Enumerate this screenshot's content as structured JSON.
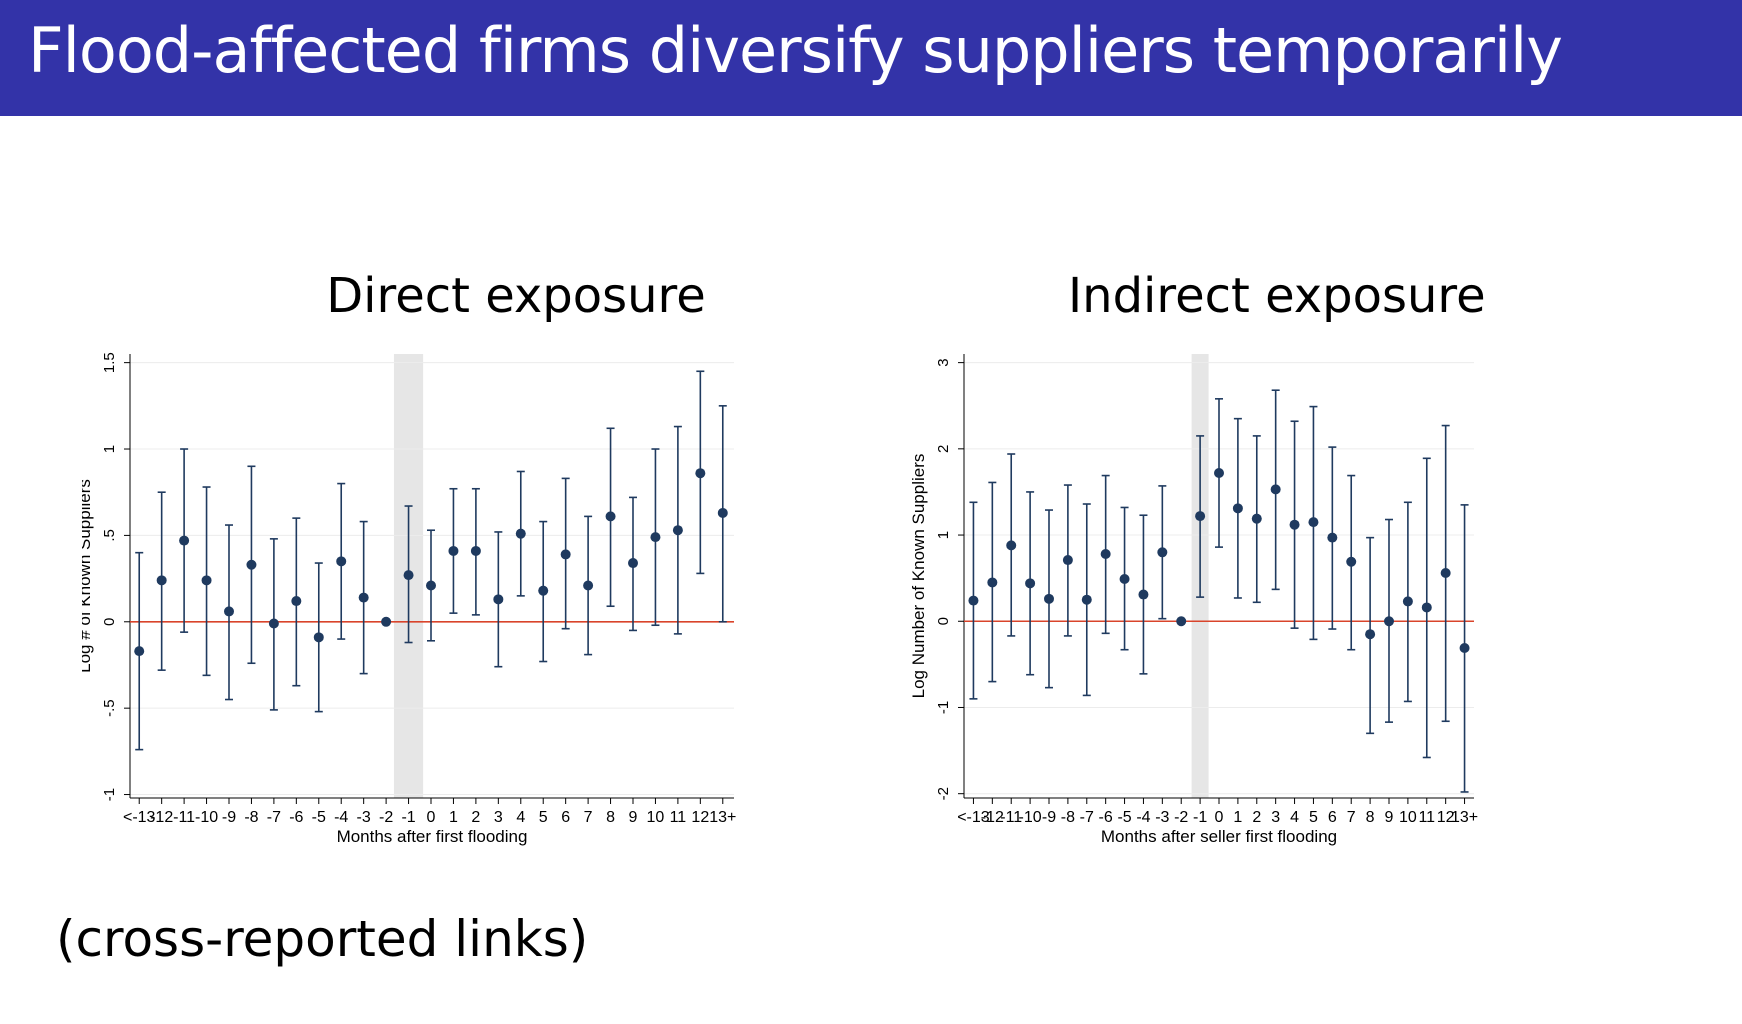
{
  "slide": {
    "title": "Flood-affected firms diversify suppliers temporarily",
    "footnote": "(cross-reported links)"
  },
  "colors": {
    "title_bar": "#3333a8",
    "marker": "#1f3a5f",
    "zero_line": "#d9442b",
    "shade": "#e6e6e6",
    "grid": "#ececec"
  },
  "chart_data": [
    {
      "type": "scatter",
      "subtype": "coefficient-plot-with-confidence-intervals",
      "panel_title": "Direct exposure",
      "xlabel": "Months after first flooding",
      "ylabel": "Log # of Known Suppliers",
      "categories": [
        "<-13",
        "-12",
        "-11",
        "-10",
        "-9",
        "-8",
        "-7",
        "-6",
        "-5",
        "-4",
        "-3",
        "-2",
        "-1",
        "0",
        "1",
        "2",
        "3",
        "4",
        "5",
        "6",
        "7",
        "8",
        "9",
        "10",
        "11",
        "12",
        "13+"
      ],
      "estimates": [
        -0.17,
        0.24,
        0.47,
        0.24,
        0.06,
        0.33,
        -0.01,
        0.12,
        -0.09,
        0.35,
        0.14,
        0.0,
        0.27,
        0.21,
        0.41,
        0.41,
        0.13,
        0.51,
        0.18,
        0.39,
        0.21,
        0.61,
        0.34,
        0.49,
        0.53,
        0.86,
        0.63
      ],
      "ci_lower": [
        -0.74,
        -0.28,
        -0.06,
        -0.31,
        -0.45,
        -0.24,
        -0.51,
        -0.37,
        -0.52,
        -0.1,
        -0.3,
        null,
        -0.12,
        -0.11,
        0.05,
        0.04,
        -0.26,
        0.15,
        -0.23,
        -0.04,
        -0.19,
        0.09,
        -0.05,
        -0.02,
        -0.07,
        0.28,
        0.0
      ],
      "ci_upper": [
        0.4,
        0.75,
        1.0,
        0.78,
        0.56,
        0.9,
        0.48,
        0.6,
        0.34,
        0.8,
        0.58,
        null,
        0.67,
        0.53,
        0.77,
        0.77,
        0.52,
        0.87,
        0.58,
        0.83,
        0.61,
        1.12,
        0.72,
        1.0,
        1.13,
        1.45,
        1.25
      ],
      "ylim": [
        -1.02,
        1.55
      ],
      "yticks": [
        -1,
        -0.5,
        0,
        0.5,
        1,
        1.5
      ],
      "ytick_labels": [
        "-1",
        "-.5",
        "0",
        ".5",
        "1",
        "1.5"
      ],
      "shaded_categories": [
        "-1"
      ],
      "reference_line_y": 0,
      "grid": true
    },
    {
      "type": "scatter",
      "subtype": "coefficient-plot-with-confidence-intervals",
      "panel_title": "Indirect exposure",
      "xlabel": "Months after seller first flooding",
      "ylabel": "Log Number of Known Suppliers",
      "categories": [
        "<-13",
        "-12",
        "-11",
        "-10",
        "-9",
        "-8",
        "-7",
        "-6",
        "-5",
        "-4",
        "-3",
        "-2",
        "-1",
        "0",
        "1",
        "2",
        "3",
        "4",
        "5",
        "6",
        "7",
        "8",
        "9",
        "10",
        "11",
        "12",
        "13+"
      ],
      "estimates": [
        0.24,
        0.45,
        0.88,
        0.44,
        0.26,
        0.71,
        0.25,
        0.78,
        0.49,
        0.31,
        0.8,
        0.0,
        1.22,
        1.72,
        1.31,
        1.19,
        1.53,
        1.12,
        1.15,
        0.97,
        0.69,
        -0.15,
        0.0,
        0.23,
        0.16,
        0.56,
        -0.31
      ],
      "ci_lower": [
        -0.9,
        -0.7,
        -0.17,
        -0.62,
        -0.77,
        -0.17,
        -0.86,
        -0.14,
        -0.33,
        -0.61,
        0.03,
        null,
        0.28,
        0.86,
        0.27,
        0.22,
        0.37,
        -0.08,
        -0.21,
        -0.09,
        -0.33,
        -1.3,
        -1.17,
        -0.93,
        -1.58,
        -1.16,
        -1.98
      ],
      "ci_upper": [
        1.38,
        1.61,
        1.94,
        1.5,
        1.29,
        1.58,
        1.36,
        1.69,
        1.32,
        1.23,
        1.57,
        null,
        2.15,
        2.58,
        2.35,
        2.15,
        2.68,
        2.32,
        2.49,
        2.02,
        1.69,
        0.97,
        1.18,
        1.38,
        1.89,
        2.27,
        1.35
      ],
      "ylim": [
        -2.05,
        3.1
      ],
      "yticks": [
        -2,
        -1,
        0,
        1,
        2,
        3
      ],
      "ytick_labels": [
        "-2",
        "-1",
        "0",
        "1",
        "2",
        "3"
      ],
      "shaded_categories": [
        "-1"
      ],
      "reference_line_y": 0,
      "grid": true
    }
  ]
}
